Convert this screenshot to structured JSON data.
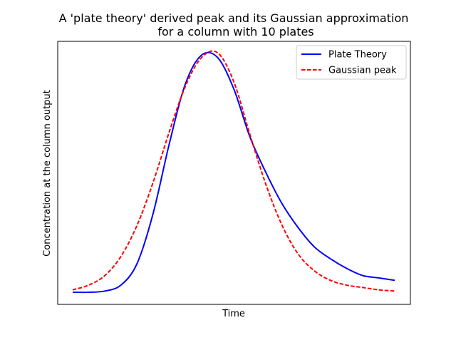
{
  "chart_data": {
    "type": "line",
    "title": "A 'plate theory' derived peak and its Gaussian approximation\nfor a column with 10 plates",
    "xlabel": "Time",
    "ylabel": "Concentration at the column output",
    "x_ticks": [],
    "y_ticks": [],
    "xlim": [
      0,
      1
    ],
    "ylim": [
      -0.05,
      1.05
    ],
    "grid": false,
    "legend_position": "top-right",
    "series": [
      {
        "name": "Plate Theory",
        "color": "#0000ff",
        "style": "solid",
        "x": [
          0.0,
          0.05,
          0.1,
          0.15,
          0.2,
          0.25,
          0.3,
          0.35,
          0.4,
          0.45,
          0.5,
          0.55,
          0.6,
          0.65,
          0.7,
          0.75,
          0.8,
          0.85,
          0.9,
          0.95,
          1.0
        ],
        "y": [
          0.0,
          0.0,
          0.005,
          0.03,
          0.12,
          0.33,
          0.62,
          0.87,
          0.99,
          0.98,
          0.85,
          0.65,
          0.5,
          0.37,
          0.27,
          0.19,
          0.14,
          0.1,
          0.07,
          0.06,
          0.05
        ]
      },
      {
        "name": "Gaussian peak",
        "color": "#ff0000",
        "style": "dashed",
        "x": [
          0.0,
          0.05,
          0.1,
          0.15,
          0.2,
          0.25,
          0.3,
          0.35,
          0.4,
          0.45,
          0.5,
          0.55,
          0.6,
          0.65,
          0.7,
          0.75,
          0.8,
          0.85,
          0.9,
          0.95,
          1.0
        ],
        "y": [
          0.01,
          0.03,
          0.07,
          0.15,
          0.28,
          0.46,
          0.67,
          0.86,
          0.98,
          1.0,
          0.88,
          0.66,
          0.45,
          0.28,
          0.16,
          0.09,
          0.05,
          0.03,
          0.02,
          0.01,
          0.005
        ]
      }
    ]
  }
}
